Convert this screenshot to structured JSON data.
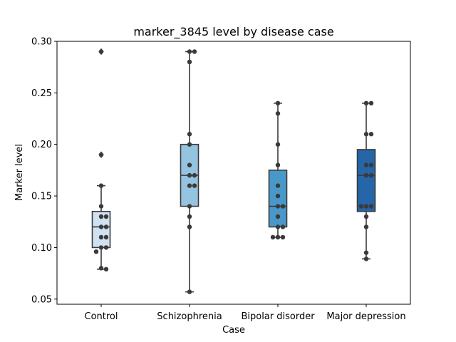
{
  "chart_data": {
    "type": "box",
    "title": "marker_3845 level by disease case",
    "xlabel": "Case",
    "ylabel": "Marker level",
    "ylim": [
      0.045,
      0.3
    ],
    "yticks": [
      0.05,
      0.1,
      0.15,
      0.2,
      0.25,
      0.3
    ],
    "ytick_labels": [
      "0.05",
      "0.10",
      "0.15",
      "0.20",
      "0.25",
      "0.30"
    ],
    "grid": false,
    "categories": [
      "Control",
      "Schizophrenia",
      "Bipolar disorder",
      "Major depression"
    ],
    "colors": [
      "#d0e1f2",
      "#94c4df",
      "#4a98c9",
      "#2565a8"
    ],
    "boxes": [
      {
        "category": "Control",
        "q1": 0.1,
        "median": 0.12,
        "q3": 0.135,
        "whisker_low": 0.079,
        "whisker_high": 0.16,
        "outliers": [
          0.19,
          0.29
        ]
      },
      {
        "category": "Schizophrenia",
        "q1": 0.14,
        "median": 0.17,
        "q3": 0.2,
        "whisker_low": 0.057,
        "whisker_high": 0.29,
        "outliers": []
      },
      {
        "category": "Bipolar disorder",
        "q1": 0.12,
        "median": 0.14,
        "q3": 0.175,
        "whisker_low": 0.11,
        "whisker_high": 0.24,
        "outliers": []
      },
      {
        "category": "Major depression",
        "q1": 0.135,
        "median": 0.17,
        "q3": 0.195,
        "whisker_low": 0.089,
        "whisker_high": 0.24,
        "outliers": []
      }
    ],
    "swarm_points": [
      [
        0.29,
        0.19,
        0.16,
        0.14,
        0.13,
        0.13,
        0.12,
        0.12,
        0.11,
        0.11,
        0.1,
        0.1,
        0.096,
        0.08,
        0.079
      ],
      [
        0.29,
        0.29,
        0.28,
        0.21,
        0.2,
        0.18,
        0.17,
        0.17,
        0.16,
        0.16,
        0.14,
        0.13,
        0.12,
        0.057
      ],
      [
        0.24,
        0.23,
        0.2,
        0.18,
        0.16,
        0.15,
        0.14,
        0.14,
        0.13,
        0.12,
        0.12,
        0.11,
        0.11,
        0.11
      ],
      [
        0.24,
        0.24,
        0.21,
        0.21,
        0.18,
        0.18,
        0.17,
        0.17,
        0.14,
        0.14,
        0.14,
        0.13,
        0.12,
        0.095,
        0.089
      ]
    ]
  }
}
